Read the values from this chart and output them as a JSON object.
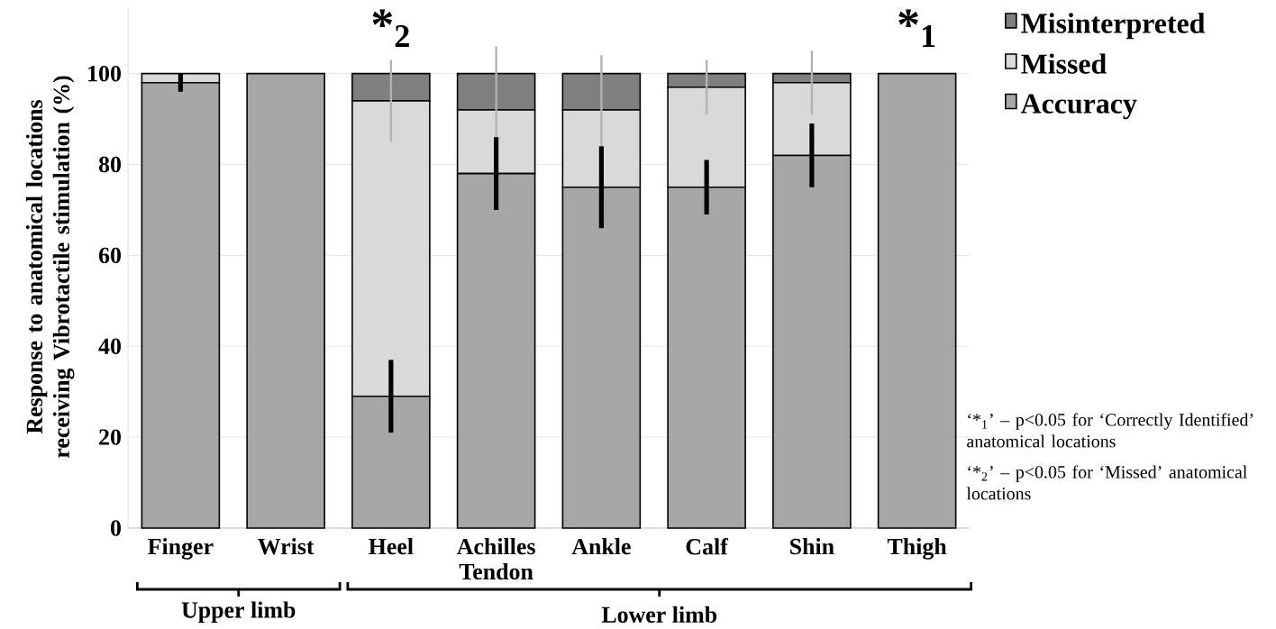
{
  "chart_data": {
    "type": "bar",
    "stacked": true,
    "ylabel": "Response to anatomical locations receiving Vibrotactile stimulation (%)",
    "categories": [
      "Finger",
      "Wrist",
      "Heel",
      "Achilles Tendon",
      "Ankle",
      "Calf",
      "Shin",
      "Thigh"
    ],
    "series": [
      {
        "name": "Accuracy",
        "color": "#a6a6a6",
        "values": [
          98,
          100,
          29,
          78,
          75,
          75,
          82,
          100
        ],
        "errors": [
          2,
          null,
          8,
          8,
          9,
          6,
          7,
          null
        ]
      },
      {
        "name": "Missed",
        "color": "#d9d9d9",
        "values": [
          2,
          0,
          65,
          14,
          17,
          22,
          16,
          0
        ],
        "errors": [
          null,
          null,
          9,
          14,
          12,
          6,
          7,
          null
        ]
      },
      {
        "name": "Misinterpreted",
        "color": "#7f7f7f",
        "values": [
          0,
          0,
          6,
          8,
          8,
          3,
          2,
          0
        ]
      }
    ],
    "ylim": [
      0,
      115
    ],
    "yticks": [
      0,
      20,
      40,
      60,
      80,
      100
    ],
    "grid": "y",
    "legend": "top right",
    "annotations": [
      "*$_{2}$",
      "*$_{1}$",
      "Upper limb",
      "Lower limb",
      "‘*$_{1}$’ – p<0.05 for ‘Correctly Identified’ anatomical locations",
      "‘*$_{2}$’ – p<0.05 for ‘Missed’ anatomical locations"
    ]
  }
}
